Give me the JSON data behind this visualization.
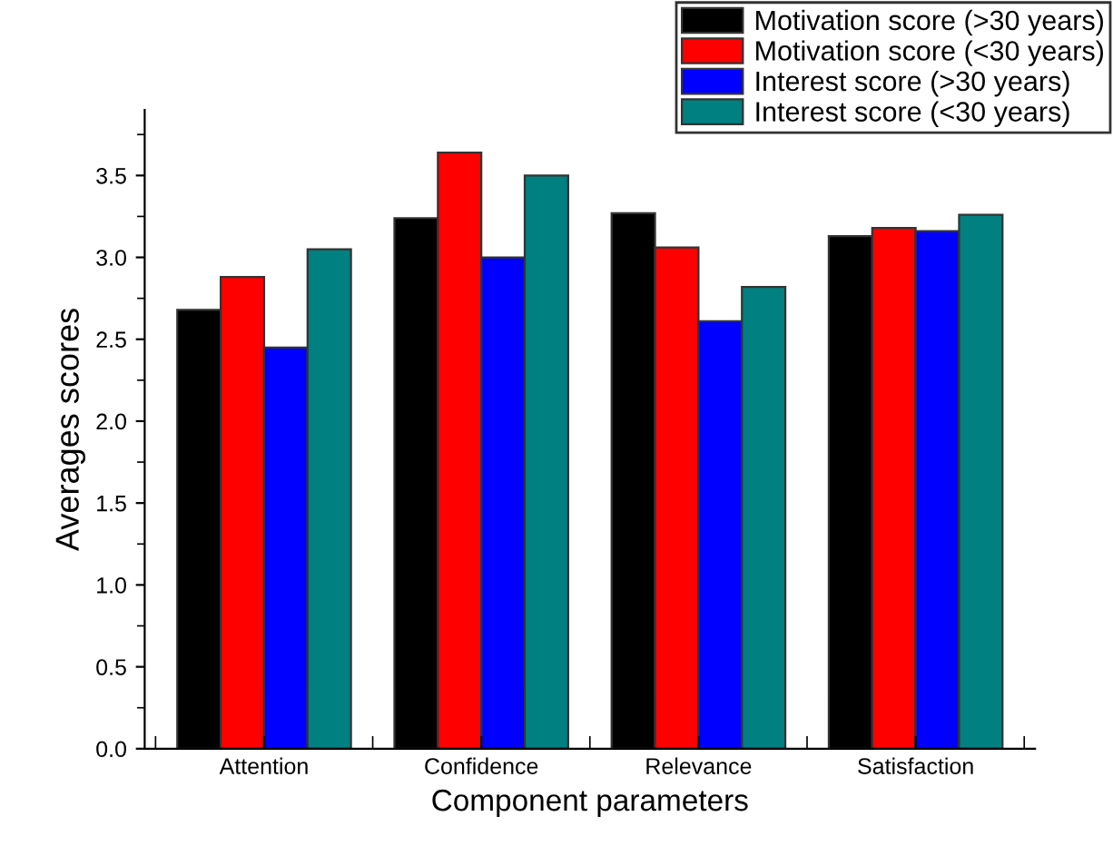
{
  "chart_data": {
    "type": "bar",
    "xlabel": "Component parameters",
    "ylabel": "Averages scores",
    "categories": [
      "Attention",
      "Confidence",
      "Relevance",
      "Satisfaction"
    ],
    "series": [
      {
        "name": "Motivation score (>30 years)",
        "color": "#000000",
        "values": [
          2.68,
          3.24,
          3.27,
          3.13
        ]
      },
      {
        "name": "Motivation score (<30 years)",
        "color": "#ff0000",
        "values": [
          2.88,
          3.64,
          3.06,
          3.18
        ]
      },
      {
        "name": "Interest score (>30 years)",
        "color": "#0000ff",
        "values": [
          2.45,
          3.0,
          2.61,
          3.16
        ]
      },
      {
        "name": "Interest score (<30 years)",
        "color": "#008080",
        "values": [
          3.05,
          3.5,
          2.82,
          3.26
        ]
      }
    ],
    "ylim": [
      0,
      3.9
    ],
    "yticks": [
      {
        "value": 0,
        "label": "0.0"
      },
      0.5,
      {
        "value": 1,
        "label": "1.0"
      },
      1.5,
      {
        "value": 2,
        "label": "2.0"
      },
      2.5,
      {
        "value": 3,
        "label": "3.0"
      },
      3.5
    ],
    "grid": false,
    "legend": "top right"
  }
}
